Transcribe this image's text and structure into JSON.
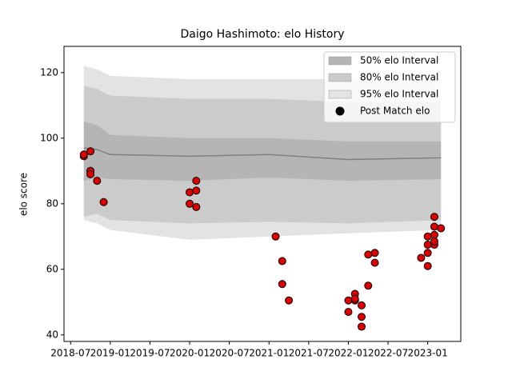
{
  "chart_data": {
    "type": "band",
    "title": "Daigo Hashimoto: elo History",
    "y_label": "elo score",
    "xlim": [
      "2018-06",
      "2023-06"
    ],
    "ylim": [
      38,
      128
    ],
    "xticks": [
      "2018-07",
      "2019-01",
      "2019-07",
      "2020-01",
      "2020-07",
      "2021-01",
      "2021-07",
      "2022-01",
      "2022-07",
      "2023-01"
    ],
    "yticks": [
      40,
      60,
      80,
      100,
      120
    ],
    "legend": "upper right",
    "x": [
      "2018-09",
      "2018-11",
      "2019-01",
      "2020-01",
      "2021-01",
      "2022-01",
      "2023-03"
    ],
    "bands": [
      {
        "name": "50% elo Interval",
        "color": "#b5b5b5",
        "lower": [
          87,
          88,
          87.5,
          87,
          88,
          87,
          87.5
        ],
        "upper": [
          105,
          104,
          101,
          100,
          100,
          99,
          99
        ]
      },
      {
        "name": "80% elo Interval",
        "color": "#cbcbcb",
        "lower": [
          76,
          77,
          75,
          74,
          74.5,
          74,
          75
        ],
        "upper": [
          116,
          115,
          113,
          112,
          112,
          111,
          111
        ]
      },
      {
        "name": "95% elo Interval",
        "color": "#e3e3e3",
        "lower": [
          75,
          74,
          72,
          69,
          70,
          71,
          72
        ],
        "upper": [
          122,
          121,
          119,
          118,
          118,
          118,
          118
        ]
      }
    ],
    "mean": {
      "color": "#808080",
      "values": [
        97,
        96.5,
        95,
        94.5,
        95,
        93.5,
        94
      ]
    },
    "points": {
      "name": "Post Match elo",
      "color": "#dd0000",
      "x": [
        "2018-09",
        "2018-09",
        "2018-10",
        "2018-10",
        "2018-10",
        "2018-10",
        "2018-11",
        "2018-12",
        "2020-01",
        "2020-01",
        "2020-02",
        "2020-02",
        "2020-02",
        "2021-02",
        "2021-03",
        "2021-03",
        "2021-04",
        "2022-01",
        "2022-01",
        "2022-02",
        "2022-02",
        "2022-02",
        "2022-03",
        "2022-03",
        "2022-03",
        "2022-04",
        "2022-04",
        "2022-05",
        "2022-05",
        "2022-12",
        "2023-01",
        "2023-01",
        "2023-01",
        "2023-01",
        "2023-02",
        "2023-02",
        "2023-02",
        "2023-02",
        "2023-02",
        "2023-03"
      ],
      "values": [
        94.5,
        95,
        96,
        90,
        90,
        89,
        87,
        80.5,
        80,
        83.5,
        87,
        84,
        79,
        70,
        62.5,
        55.5,
        50.5,
        47,
        50.5,
        52.5,
        50.5,
        51,
        45.5,
        42.5,
        49,
        55,
        64.5,
        62,
        65,
        63.5,
        65,
        61,
        67.5,
        70,
        67.5,
        70.5,
        68.5,
        73,
        76,
        72.5
      ]
    }
  }
}
